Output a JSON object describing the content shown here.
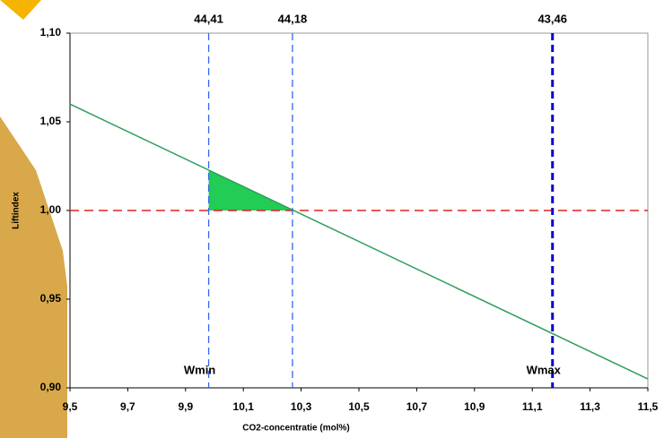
{
  "chart_data": {
    "type": "line",
    "xlabel": "CO2-concentratie (mol%)",
    "ylabel": "Liftindex",
    "xlim": [
      9.5,
      11.5
    ],
    "ylim": [
      0.9,
      1.1
    ],
    "xticks": [
      {
        "value": 9.5,
        "label": "9,5"
      },
      {
        "value": 9.7,
        "label": "9,7"
      },
      {
        "value": 9.9,
        "label": "9,9"
      },
      {
        "value": 10.1,
        "label": "10,1"
      },
      {
        "value": 10.3,
        "label": "10,3"
      },
      {
        "value": 10.5,
        "label": "10,5"
      },
      {
        "value": 10.7,
        "label": "10,7"
      },
      {
        "value": 10.9,
        "label": "10,9"
      },
      {
        "value": 11.1,
        "label": "11,1"
      },
      {
        "value": 11.3,
        "label": "11,3"
      },
      {
        "value": 11.5,
        "label": "11,5"
      }
    ],
    "yticks": [
      {
        "value": 0.9,
        "label": "0,90"
      },
      {
        "value": 0.95,
        "label": "0,95"
      },
      {
        "value": 1.0,
        "label": "1,00"
      },
      {
        "value": 1.05,
        "label": "1,05"
      },
      {
        "value": 1.1,
        "label": "1,10"
      }
    ],
    "series": [
      {
        "color": "#2e9e5b",
        "x": [
          9.5,
          11.5
        ],
        "values": [
          1.06,
          0.905
        ]
      }
    ],
    "hline": {
      "value": 1.0,
      "color": "#dd2222"
    },
    "vlines": [
      {
        "x": 9.98,
        "label": "44,41",
        "color": "#3366ee",
        "annotation": "Wmin"
      },
      {
        "x": 10.27,
        "label": "44,18",
        "color": "#3366ee"
      },
      {
        "x": 11.17,
        "label": "43,46",
        "color": "#0000cc",
        "annotation": "Wmax"
      }
    ],
    "fill": {
      "color": "#22cc55",
      "x": [
        9.98,
        9.98,
        10.27
      ],
      "values": [
        1.0,
        1.0228,
        1.0
      ]
    }
  }
}
